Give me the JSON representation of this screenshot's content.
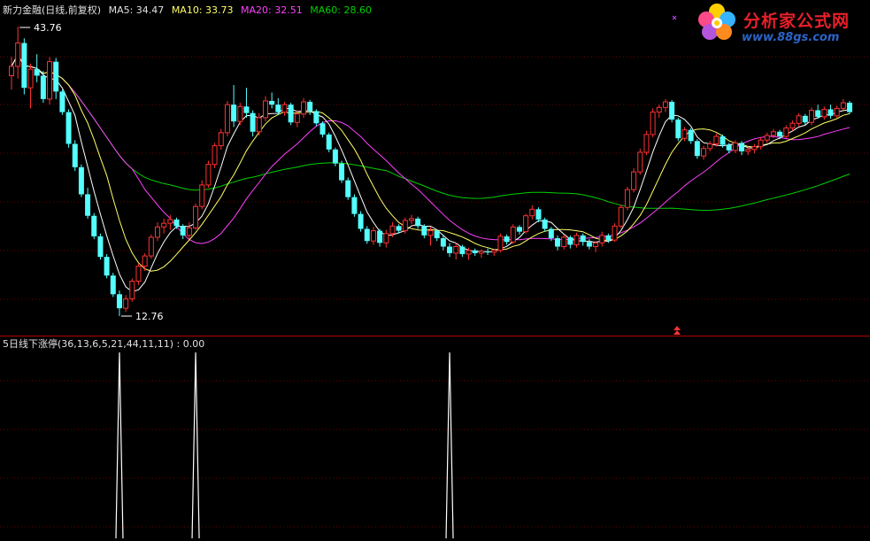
{
  "header": {
    "title": "新力金融(日线,前复权)",
    "ma5": "MA5: 34.47",
    "ma10": "MA10: 33.73",
    "ma20": "MA20: 32.51",
    "ma60": "MA60: 28.60"
  },
  "indicator_header": "5日线下涨停(36,13,6,5,21,44,11,11) : 0.00",
  "watermark": {
    "title": "分析家公式网",
    "url": "www.88gs.com"
  },
  "colors": {
    "up": "#ff3232",
    "down": "#54ffff",
    "ma5": "#ffffff",
    "ma10": "#ffff66",
    "ma20": "#ff40ff",
    "ma60": "#00d000",
    "grid": "#700000",
    "signal": "#ffffff"
  },
  "chart_data": [
    {
      "type": "candlestick",
      "title": "新力金融(日线,前复权)",
      "ylim": [
        12.76,
        43.76
      ],
      "annotations": {
        "high": "43.76",
        "low": "12.76"
      },
      "ohlc": [
        [
          38.5,
          40.5,
          37.0,
          39.5
        ],
        [
          39.5,
          43.76,
          38.2,
          42.0
        ],
        [
          42.0,
          42.5,
          36.5,
          37.2
        ],
        [
          37.2,
          39.8,
          35.0,
          39.2
        ],
        [
          39.2,
          40.8,
          37.8,
          38.5
        ],
        [
          38.5,
          39.0,
          35.6,
          36.0
        ],
        [
          36.0,
          40.5,
          35.4,
          40.0
        ],
        [
          40.0,
          40.4,
          36.0,
          36.8
        ],
        [
          36.8,
          37.0,
          34.3,
          34.6
        ],
        [
          34.6,
          34.9,
          30.8,
          31.2
        ],
        [
          31.2,
          31.6,
          28.3,
          28.7
        ],
        [
          28.7,
          29.0,
          25.5,
          25.8
        ],
        [
          25.8,
          26.5,
          23.2,
          23.5
        ],
        [
          23.5,
          23.8,
          21.0,
          21.3
        ],
        [
          21.3,
          21.6,
          18.8,
          19.1
        ],
        [
          19.1,
          19.4,
          16.8,
          17.1
        ],
        [
          17.1,
          17.4,
          14.8,
          15.1
        ],
        [
          15.1,
          15.5,
          12.76,
          13.6
        ],
        [
          13.6,
          15.0,
          13.2,
          14.6
        ],
        [
          14.6,
          16.8,
          14.3,
          16.5
        ],
        [
          16.5,
          18.4,
          16.1,
          18.1
        ],
        [
          18.1,
          19.5,
          17.6,
          19.2
        ],
        [
          19.2,
          21.5,
          18.9,
          21.2
        ],
        [
          21.2,
          22.8,
          20.8,
          22.3
        ],
        [
          22.3,
          23.2,
          21.6,
          22.7
        ],
        [
          22.7,
          23.6,
          22.0,
          23.1
        ],
        [
          23.1,
          23.3,
          22.1,
          22.4
        ],
        [
          22.4,
          22.6,
          21.0,
          21.4
        ],
        [
          21.4,
          22.8,
          21.0,
          22.2
        ],
        [
          22.2,
          24.8,
          22.0,
          24.5
        ],
        [
          24.5,
          27.3,
          24.2,
          26.8
        ],
        [
          26.8,
          29.4,
          26.5,
          29.0
        ],
        [
          29.0,
          31.3,
          28.6,
          31.0
        ],
        [
          31.0,
          32.8,
          30.6,
          32.4
        ],
        [
          32.4,
          35.8,
          32.0,
          35.4
        ],
        [
          35.4,
          37.5,
          33.0,
          33.6
        ],
        [
          33.6,
          35.6,
          33.2,
          35.2
        ],
        [
          35.2,
          37.2,
          34.0,
          34.5
        ],
        [
          34.5,
          34.8,
          32.0,
          32.5
        ],
        [
          32.5,
          34.5,
          32.1,
          34.0
        ],
        [
          34.0,
          36.3,
          33.6,
          35.8
        ],
        [
          35.8,
          36.7,
          35.0,
          35.4
        ],
        [
          35.4,
          36.1,
          34.3,
          34.6
        ],
        [
          34.6,
          35.7,
          34.2,
          35.4
        ],
        [
          35.4,
          35.6,
          33.2,
          33.5
        ],
        [
          33.5,
          34.8,
          33.0,
          34.4
        ],
        [
          34.4,
          36.1,
          34.0,
          35.7
        ],
        [
          35.7,
          35.9,
          34.3,
          34.7
        ],
        [
          34.7,
          34.9,
          33.1,
          33.4
        ],
        [
          33.4,
          33.6,
          31.9,
          32.2
        ],
        [
          32.2,
          32.4,
          30.3,
          30.6
        ],
        [
          30.6,
          30.8,
          28.8,
          29.1
        ],
        [
          29.1,
          29.4,
          27.0,
          27.3
        ],
        [
          27.3,
          27.6,
          25.2,
          25.5
        ],
        [
          25.5,
          25.8,
          23.4,
          23.7
        ],
        [
          23.7,
          24.0,
          21.8,
          22.1
        ],
        [
          22.1,
          22.4,
          20.5,
          20.8
        ],
        [
          20.8,
          22.3,
          20.4,
          21.9
        ],
        [
          21.9,
          22.1,
          20.2,
          20.6
        ],
        [
          20.6,
          22.0,
          20.1,
          21.6
        ],
        [
          21.6,
          22.8,
          21.2,
          22.4
        ],
        [
          22.4,
          22.6,
          21.6,
          21.9
        ],
        [
          21.9,
          23.3,
          21.6,
          23.0
        ],
        [
          23.0,
          23.6,
          22.6,
          23.2
        ],
        [
          23.2,
          23.4,
          22.1,
          22.4
        ],
        [
          22.4,
          22.6,
          21.1,
          21.4
        ],
        [
          21.4,
          22.3,
          20.3,
          21.9
        ],
        [
          21.9,
          22.0,
          20.8,
          21.1
        ],
        [
          21.1,
          21.5,
          19.8,
          20.2
        ],
        [
          20.2,
          20.6,
          19.1,
          19.5
        ],
        [
          19.5,
          20.6,
          18.8,
          20.2
        ],
        [
          20.2,
          20.4,
          19.1,
          19.4
        ],
        [
          19.4,
          20.1,
          18.8,
          19.8
        ],
        [
          19.8,
          20.0,
          19.2,
          19.5
        ],
        [
          19.5,
          19.9,
          19.0,
          19.7
        ],
        [
          19.7,
          20.0,
          19.3,
          19.6
        ],
        [
          19.6,
          19.9,
          19.2,
          19.8
        ],
        [
          19.8,
          21.6,
          19.6,
          21.3
        ],
        [
          21.3,
          21.5,
          20.4,
          20.7
        ],
        [
          20.7,
          22.6,
          20.5,
          22.3
        ],
        [
          22.3,
          22.5,
          21.5,
          21.8
        ],
        [
          21.8,
          23.7,
          21.6,
          23.5
        ],
        [
          23.5,
          24.6,
          23.1,
          24.2
        ],
        [
          24.2,
          24.4,
          22.8,
          23.1
        ],
        [
          23.1,
          23.3,
          21.8,
          22.1
        ],
        [
          22.1,
          22.3,
          20.8,
          21.1
        ],
        [
          21.1,
          21.4,
          19.8,
          20.2
        ],
        [
          20.2,
          21.5,
          19.9,
          21.2
        ],
        [
          21.2,
          21.4,
          20.0,
          20.4
        ],
        [
          20.4,
          21.7,
          20.1,
          21.4
        ],
        [
          21.4,
          21.6,
          20.3,
          20.7
        ],
        [
          20.7,
          21.0,
          19.9,
          20.2
        ],
        [
          20.2,
          20.8,
          19.6,
          20.6
        ],
        [
          20.6,
          21.8,
          20.2,
          21.4
        ],
        [
          21.4,
          21.6,
          20.6,
          20.9
        ],
        [
          20.9,
          22.7,
          20.7,
          22.4
        ],
        [
          22.4,
          24.7,
          22.2,
          24.4
        ],
        [
          24.4,
          26.6,
          24.1,
          26.3
        ],
        [
          26.3,
          28.6,
          26.0,
          28.2
        ],
        [
          28.2,
          30.7,
          27.9,
          30.3
        ],
        [
          30.3,
          32.6,
          30.0,
          32.2
        ],
        [
          32.2,
          35.0,
          31.9,
          34.6
        ],
        [
          34.6,
          35.4,
          34.0,
          35.1
        ],
        [
          35.1,
          36.0,
          34.6,
          35.7
        ],
        [
          35.7,
          35.9,
          33.5,
          33.8
        ],
        [
          33.8,
          34.0,
          31.5,
          31.8
        ],
        [
          31.8,
          33.0,
          31.5,
          32.7
        ],
        [
          32.7,
          32.9,
          31.2,
          31.5
        ],
        [
          31.5,
          31.7,
          29.6,
          29.9
        ],
        [
          29.9,
          31.0,
          29.5,
          30.7
        ],
        [
          30.7,
          31.5,
          30.4,
          31.2
        ],
        [
          31.2,
          32.3,
          30.9,
          32.0
        ],
        [
          32.0,
          32.2,
          30.8,
          31.1
        ],
        [
          31.1,
          31.3,
          30.2,
          30.5
        ],
        [
          30.5,
          31.6,
          30.2,
          31.3
        ],
        [
          31.3,
          31.5,
          30.0,
          30.4
        ],
        [
          30.4,
          30.9,
          30.0,
          30.6
        ],
        [
          30.6,
          31.2,
          30.2,
          30.9
        ],
        [
          30.9,
          31.9,
          30.6,
          31.6
        ],
        [
          31.6,
          32.4,
          31.3,
          32.1
        ],
        [
          32.1,
          32.8,
          31.8,
          32.5
        ],
        [
          32.5,
          32.7,
          31.7,
          32.0
        ],
        [
          32.0,
          33.2,
          31.8,
          32.9
        ],
        [
          32.9,
          33.7,
          32.6,
          33.4
        ],
        [
          33.4,
          34.5,
          33.1,
          34.2
        ],
        [
          34.2,
          34.4,
          33.2,
          33.5
        ],
        [
          33.5,
          35.1,
          33.2,
          34.8
        ],
        [
          34.8,
          35.4,
          33.9,
          34.1
        ],
        [
          34.1,
          35.2,
          33.8,
          34.9
        ],
        [
          34.9,
          35.4,
          33.9,
          34.2
        ],
        [
          34.2,
          35.3,
          34.0,
          35.0
        ],
        [
          35.0,
          36.0,
          34.8,
          35.6
        ],
        [
          35.6,
          35.8,
          34.4,
          34.6
        ]
      ],
      "ma_values": {
        "ma5": 34.47,
        "ma10": 33.73,
        "ma20": 32.51,
        "ma60": 28.6
      },
      "legend": [
        "MA5: 34.47",
        "MA10: 33.73",
        "MA20: 32.51",
        "MA60: 28.60"
      ]
    },
    {
      "type": "line",
      "title": "5日线下涨停(36,13,6,5,21,44,11,11) : 0.00",
      "ylim": [
        0,
        1
      ],
      "signal_bars": [
        17,
        29,
        69
      ],
      "value": 0.0
    }
  ]
}
